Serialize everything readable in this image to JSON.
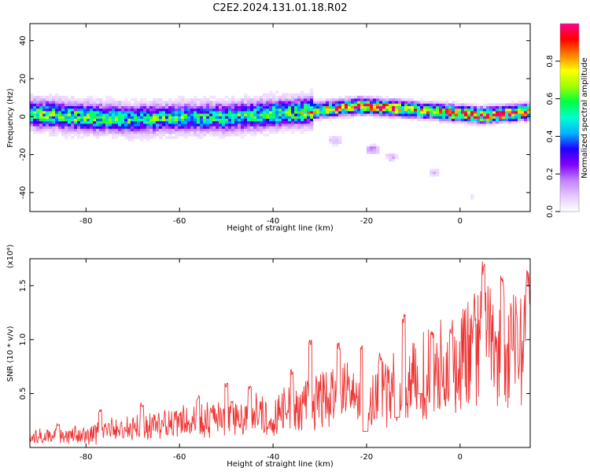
{
  "title": "C2E2.2024.131.01.18.R02",
  "chart_data": [
    {
      "type": "heatmap",
      "xlabel": "Height of straight line (km)",
      "ylabel": "Frequency (Hz)",
      "xlim": [
        -92,
        15
      ],
      "ylim": [
        -50,
        49
      ],
      "xticks": [
        -80,
        -60,
        -40,
        -20,
        0
      ],
      "yticks": [
        -40,
        -20,
        0,
        20,
        40
      ],
      "colorbar": {
        "label": "Normalized spectral amplitude",
        "range": [
          0,
          1
        ],
        "ticks": [
          "0.0",
          "0.2",
          "0.4",
          "0.6",
          "0.8"
        ],
        "tick_values": [
          0,
          0.2,
          0.4,
          0.6,
          0.8
        ],
        "colors": [
          "#ffffff",
          "#e6c8ff",
          "#c080ff",
          "#8000ff",
          "#2000ff",
          "#00b4ff",
          "#00ffd0",
          "#00ff40",
          "#a0ff00",
          "#ffff00",
          "#ff8000",
          "#ff0000",
          "#ff0090"
        ]
      },
      "ridge": [
        {
          "x": -92,
          "f": 1,
          "a": 0.55
        },
        {
          "x": -80,
          "f": -1,
          "a": 0.55
        },
        {
          "x": -70,
          "f": -2,
          "a": 0.5
        },
        {
          "x": -60,
          "f": -1,
          "a": 0.5
        },
        {
          "x": -50,
          "f": -1,
          "a": 0.5
        },
        {
          "x": -40,
          "f": 1,
          "a": 0.55
        },
        {
          "x": -34,
          "f": 2,
          "a": 0.6
        },
        {
          "x": -30,
          "f": 3,
          "a": 0.75
        },
        {
          "x": -22,
          "f": 5,
          "a": 0.95
        },
        {
          "x": -15,
          "f": 4,
          "a": 0.9
        },
        {
          "x": -10,
          "f": 3,
          "a": 0.75
        },
        {
          "x": -5,
          "f": 2,
          "a": 0.8
        },
        {
          "x": 0,
          "f": 1,
          "a": 0.95
        },
        {
          "x": 5,
          "f": 0,
          "a": 0.9
        },
        {
          "x": 10,
          "f": 1,
          "a": 0.85
        },
        {
          "x": 15,
          "f": 2,
          "a": 0.8
        }
      ],
      "isolated_patches": [
        {
          "x": -27,
          "f": -13,
          "a": 0.15
        },
        {
          "x": -19,
          "f": -18,
          "a": 0.2
        },
        {
          "x": -15,
          "f": -22,
          "a": 0.12
        },
        {
          "x": -6,
          "f": -30,
          "a": 0.1
        },
        {
          "x": 2,
          "f": -43,
          "a": 0.05
        }
      ]
    },
    {
      "type": "line",
      "xlabel": "Height of straight line (km)",
      "ylabel": "SNR (10 * v/v)",
      "multiplier": "(x10⁴)",
      "xlim": [
        -92,
        15
      ],
      "ylim": [
        0,
        1.75
      ],
      "xticks": [
        -80,
        -60,
        -40,
        -20,
        0
      ],
      "yticks": [
        0.5,
        1.0,
        1.5
      ],
      "ytick_labels": [
        "0.5",
        "1.0",
        "1.5"
      ],
      "color": "#ee3333",
      "trend": [
        {
          "x": -92,
          "y": 0.1
        },
        {
          "x": -80,
          "y": 0.14
        },
        {
          "x": -70,
          "y": 0.2
        },
        {
          "x": -60,
          "y": 0.25
        },
        {
          "x": -50,
          "y": 0.3
        },
        {
          "x": -40,
          "y": 0.35
        },
        {
          "x": -30,
          "y": 0.48
        },
        {
          "x": -25,
          "y": 0.56
        },
        {
          "x": -20,
          "y": 0.5
        },
        {
          "x": -15,
          "y": 0.62
        },
        {
          "x": -10,
          "y": 0.72
        },
        {
          "x": -5,
          "y": 0.82
        },
        {
          "x": 0,
          "y": 0.92
        },
        {
          "x": 5,
          "y": 1.05
        },
        {
          "x": 10,
          "y": 0.95
        },
        {
          "x": 15,
          "y": 1.1
        }
      ],
      "spikes": [
        {
          "x": -86,
          "y": 0.22
        },
        {
          "x": -77,
          "y": 0.36
        },
        {
          "x": -68,
          "y": 0.42
        },
        {
          "x": -56,
          "y": 0.48
        },
        {
          "x": -50,
          "y": 0.6
        },
        {
          "x": -45,
          "y": 0.6
        },
        {
          "x": -36,
          "y": 0.74
        },
        {
          "x": -32,
          "y": 1.0
        },
        {
          "x": -26,
          "y": 0.98
        },
        {
          "x": -21,
          "y": 0.95
        },
        {
          "x": -17,
          "y": 0.88
        },
        {
          "x": -12,
          "y": 1.25
        },
        {
          "x": -6,
          "y": 1.08
        },
        {
          "x": -2,
          "y": 1.15
        },
        {
          "x": 3,
          "y": 1.22
        },
        {
          "x": 5,
          "y": 1.75
        },
        {
          "x": 9,
          "y": 1.6
        },
        {
          "x": 14.5,
          "y": 1.65
        }
      ],
      "dips": [
        {
          "x": -20.3,
          "y": 0.15
        },
        {
          "x": -13.5,
          "y": 0.28
        },
        {
          "x": -8.5,
          "y": 0.5
        }
      ]
    }
  ]
}
